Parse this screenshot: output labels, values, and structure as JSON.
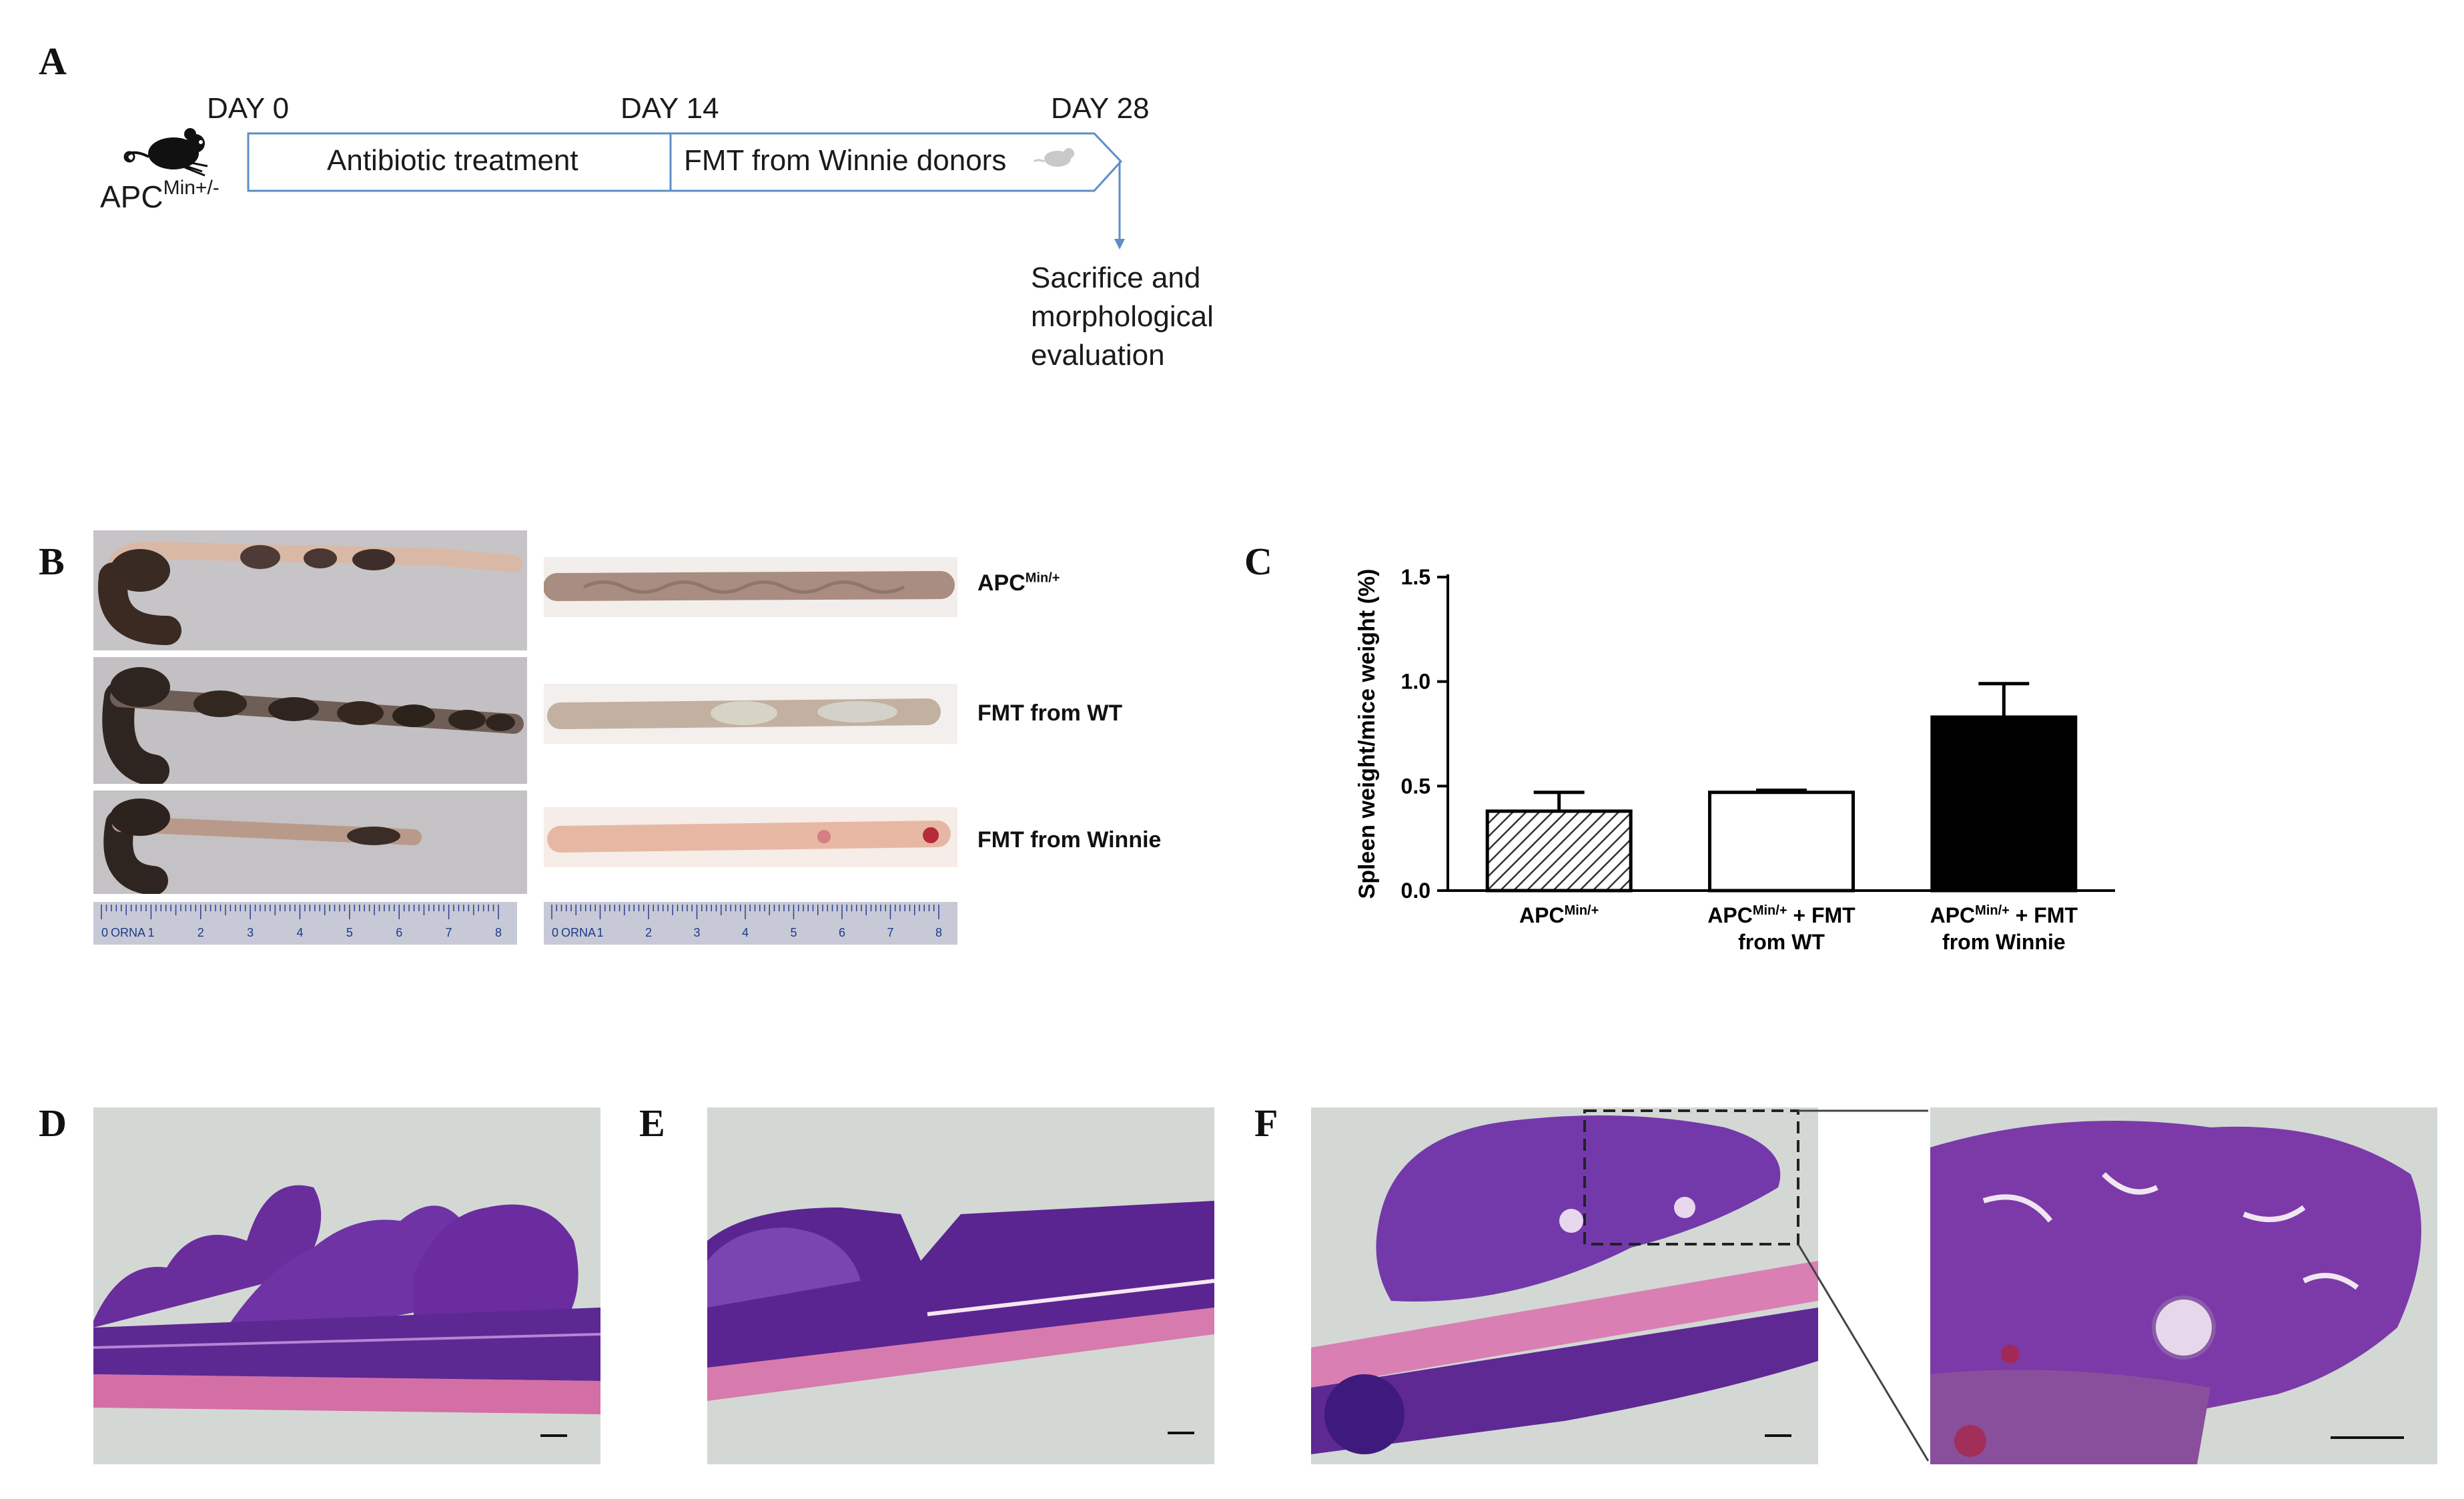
{
  "panels": {
    "a": "A",
    "b": "B",
    "c": "C",
    "d": "D",
    "e": "E",
    "f": "F"
  },
  "timeline": {
    "day0": "DAY 0",
    "day14": "DAY 14",
    "day28": "DAY 28",
    "phase1": "Antibiotic treatment",
    "phase2": "FMT from Winnie donors",
    "mouse_label_base": "APC",
    "mouse_label_sup": "Min+/-",
    "endpoint_lines": [
      "Sacrifice and",
      "morphological",
      "evaluation"
    ]
  },
  "photo_groups": [
    {
      "base": "APC",
      "sup": "Min/+",
      "rest": ""
    },
    {
      "base": "FMT from WT",
      "sup": "",
      "rest": ""
    },
    {
      "base": "FMT from Winnie",
      "sup": "",
      "rest": ""
    }
  ],
  "ruler": {
    "brand": "ORNA",
    "ticks": [
      "0",
      "1",
      "2",
      "3",
      "4",
      "5",
      "6",
      "7",
      "8"
    ]
  },
  "chart_data": {
    "type": "bar",
    "ylabel": "Spleen weight/mice weight (%)",
    "ylim": [
      0,
      1.5
    ],
    "yticks": [
      "0.0",
      "0.5",
      "1.0",
      "1.5"
    ],
    "categories": [
      {
        "lines": [
          {
            "base": "APC",
            "sup": "Min/+",
            "rest": ""
          }
        ]
      },
      {
        "lines": [
          {
            "base": "APC",
            "sup": "Min/+",
            "rest": " + FMT"
          },
          {
            "base": "from WT",
            "sup": "",
            "rest": ""
          }
        ]
      },
      {
        "lines": [
          {
            "base": "APC",
            "sup": "Min/+",
            "rest": " + FMT"
          },
          {
            "base": "from Winnie",
            "sup": "",
            "rest": ""
          }
        ]
      }
    ],
    "values": [
      0.38,
      0.47,
      0.83
    ],
    "errors": [
      0.09,
      0.01,
      0.16
    ],
    "fills": [
      "hatched",
      "white",
      "black"
    ],
    "colors": {
      "axis": "#000000",
      "bar_edge": "#000000",
      "black_bar": "#000000"
    }
  }
}
